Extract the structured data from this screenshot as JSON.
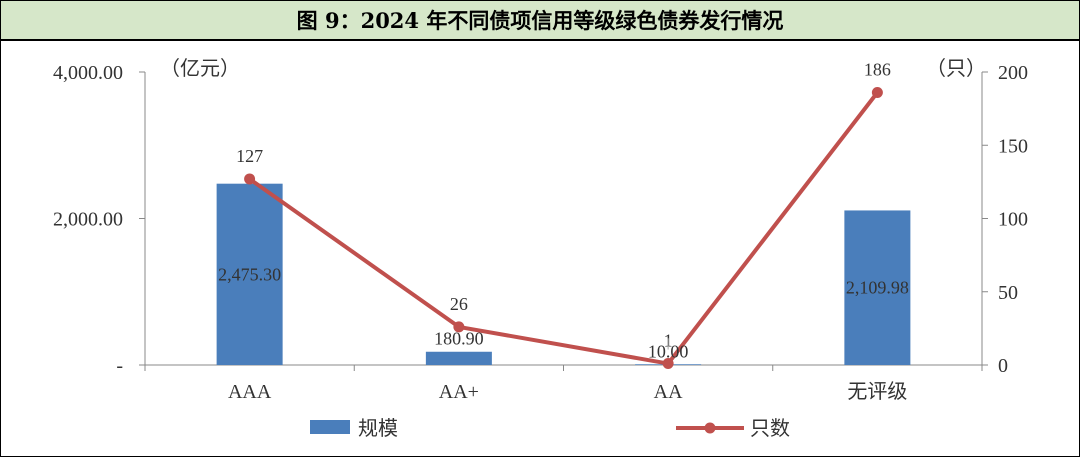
{
  "chart_data": {
    "type": "bar+line",
    "title": "图 9：2024 年不同债项信用等级绿色债券发行情况",
    "categories": [
      "AAA",
      "AA+",
      "AA",
      "无评级"
    ],
    "series": [
      {
        "name": "规模",
        "type": "bar",
        "axis": "left",
        "values": [
          2475.3,
          180.9,
          10.0,
          2109.98
        ],
        "labels": [
          "2,475.30",
          "180.90",
          "10.00",
          "2,109.98"
        ],
        "color": "#4a7ebb"
      },
      {
        "name": "只数",
        "type": "line",
        "axis": "right",
        "values": [
          127,
          26,
          1,
          186
        ],
        "labels": [
          "127",
          "26",
          "1",
          "186"
        ],
        "color": "#c0504d"
      }
    ],
    "left_axis": {
      "unit": "（亿元）",
      "ylim": [
        0,
        4000
      ],
      "ticks": [
        0,
        2000,
        4000
      ],
      "tick_labels": [
        "-",
        "2,000.00",
        "4,000.00"
      ]
    },
    "right_axis": {
      "unit": "（只）",
      "ylim": [
        0,
        200
      ],
      "ticks": [
        0,
        50,
        100,
        150,
        200
      ],
      "tick_labels": [
        "0",
        "50",
        "100",
        "150",
        "200"
      ]
    },
    "legend_position": "bottom",
    "title_bar_color": "#d6e7c9"
  }
}
